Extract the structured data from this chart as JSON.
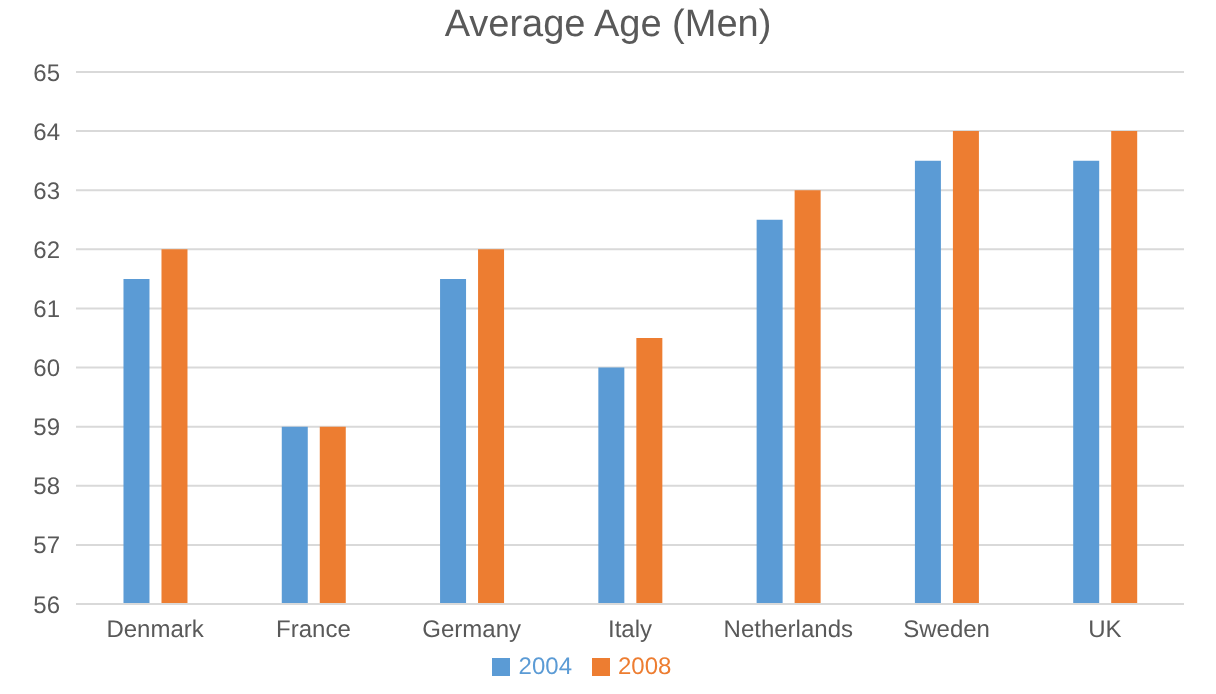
{
  "chart_data": {
    "type": "bar",
    "title": "Average Age (Men)",
    "categories": [
      "Denmark",
      "France",
      "Germany",
      "Italy",
      "Netherlands",
      "Sweden",
      "UK"
    ],
    "series": [
      {
        "name": "2004",
        "color": "#5b9bd5",
        "values": [
          61.5,
          59,
          61.5,
          60,
          62.5,
          63.5,
          63.5
        ]
      },
      {
        "name": "2008",
        "color": "#ed7d31",
        "values": [
          62,
          59,
          62,
          60.5,
          63,
          64,
          64
        ]
      }
    ],
    "ylim": [
      56,
      65
    ],
    "yticks": [
      56,
      57,
      58,
      59,
      60,
      61,
      62,
      63,
      64,
      65
    ],
    "grid": "y",
    "legend": "bottom"
  }
}
